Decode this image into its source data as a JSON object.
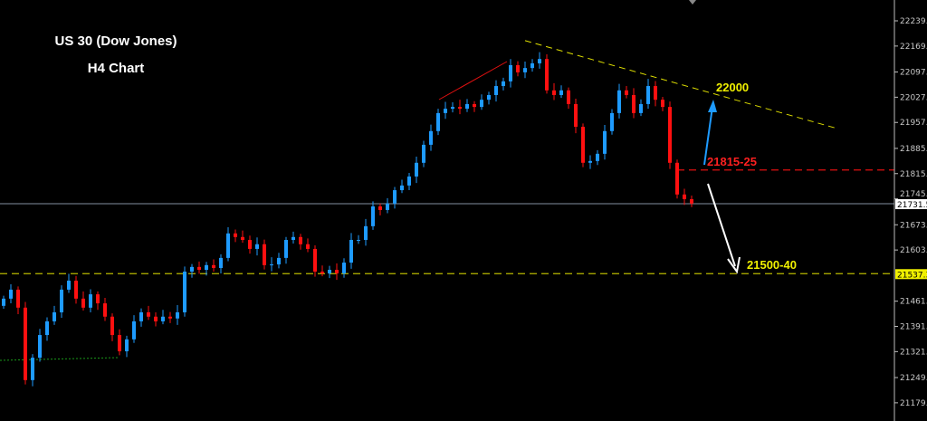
{
  "chart_data": {
    "type": "candlestick",
    "title": "US 30 (Dow Jones)",
    "subtitle": "H4 Chart",
    "ylim": [
      21150,
      22270
    ],
    "y_ticks": [
      22239.0,
      22169.0,
      22097.0,
      22027.0,
      21957.0,
      21885.0,
      21815.0,
      21745.0,
      21673.0,
      21603.0,
      21461.0,
      21391.0,
      21321.0,
      21249.0,
      21179.0
    ],
    "y_tick_labels": [
      "22239.0",
      "22169.0",
      "22097.0",
      "22027.0",
      "21957.0",
      "21885.0",
      "21815.0",
      "21745.0",
      "21673.0",
      "21603.0",
      "21461.0",
      "21391.0",
      "21321.0",
      "21249.0",
      "21179.0"
    ],
    "grid": false,
    "colors": {
      "background": "#000000",
      "up": "#1e9bff",
      "down": "#ff1010",
      "bid_line": "#6a7380",
      "support": "#b8b800",
      "resistance_red": "#e01010",
      "trendline": "#e0e000"
    },
    "closes": [
      21468,
      21493,
      21443,
      21242,
      21304,
      21367,
      21405,
      21430,
      21493,
      21518,
      21468,
      21443,
      21480,
      21455,
      21418,
      21367,
      21322,
      21355,
      21405,
      21430,
      21418,
      21405,
      21418,
      21413,
      21430,
      21543,
      21556,
      21548,
      21561,
      21553,
      21581,
      21649,
      21639,
      21631,
      21606,
      21619,
      21561,
      21563,
      21581,
      21631,
      21639,
      21619,
      21606,
      21543,
      21538,
      21548,
      21538,
      21568,
      21631,
      21631,
      21669,
      21724,
      21714,
      21732,
      21769,
      21782,
      21807,
      21845,
      21895,
      21933,
      21983,
      21995,
      22000,
      21995,
      22008,
      22000,
      22020,
      22033,
      22058,
      22071,
      22116,
      22096,
      22108,
      22121,
      22133,
      22046,
      22033,
      22046,
      22008,
      21945,
      21845,
      21850,
      21870,
      21933,
      21983,
      22046,
      22033,
      21983,
      22008,
      22058,
      22020,
      22000,
      21845,
      21757,
      21744,
      21732
    ],
    "price_labels": {
      "bid": "21731.5",
      "support": "21537.3"
    },
    "levels": {
      "bid": 21731.5,
      "support": 21537.3,
      "resistance": 21825
    },
    "annotations": {
      "target_up": "22000",
      "resistance": "21815-25",
      "target_down": "21500-40"
    },
    "trendline": {
      "from": 22184,
      "to": 21940
    }
  }
}
